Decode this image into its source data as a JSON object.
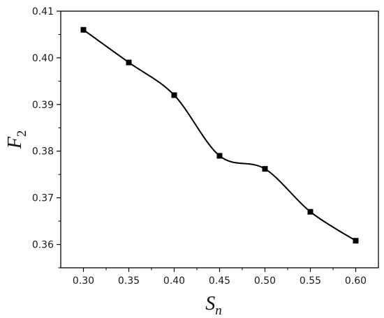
{
  "chart_data": {
    "type": "line",
    "x": [
      0.3,
      0.35,
      0.4,
      0.45,
      0.5,
      0.55,
      0.6
    ],
    "series": [
      {
        "values": [
          0.406,
          0.399,
          0.392,
          0.379,
          0.3762,
          0.367,
          0.3608
        ]
      }
    ],
    "xlabel": {
      "main": "S",
      "sub": "n"
    },
    "ylabel": {
      "main": "F",
      "sub": "2"
    },
    "xlim": [
      0.275,
      0.625
    ],
    "ylim": [
      0.355,
      0.41
    ],
    "xticks": [
      0.3,
      0.35,
      0.4,
      0.45,
      0.5,
      0.55,
      0.6
    ],
    "xtick_labels": [
      "0.30",
      "0.35",
      "0.40",
      "0.45",
      "0.50",
      "0.55",
      "0.60"
    ],
    "yticks": [
      0.36,
      0.37,
      0.38,
      0.39,
      0.4,
      0.41
    ],
    "ytick_labels": [
      "0.36",
      "0.37",
      "0.38",
      "0.39",
      "0.40",
      "0.41"
    ],
    "grid": false,
    "line_color": "#000000",
    "marker": "square"
  }
}
